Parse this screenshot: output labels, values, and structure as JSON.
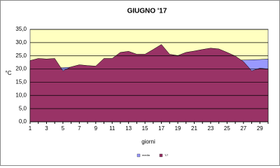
{
  "chart_data": {
    "type": "area",
    "title": "GIUGNO '17",
    "x_label": "giorni",
    "y_label": "°C",
    "categories": [
      "1",
      null,
      "3",
      null,
      "5",
      null,
      "7",
      null,
      "9",
      null,
      "11",
      null,
      "13",
      null,
      "15",
      null,
      "17",
      null,
      "19",
      null,
      "21",
      null,
      "23",
      null,
      "25",
      null,
      "27",
      null,
      "29",
      null
    ],
    "series": [
      {
        "name": "media",
        "color": "#9999ff",
        "values": [
          20.0,
          20.1,
          20.3,
          20.4,
          20.5,
          20.7,
          20.8,
          20.9,
          21.0,
          21.2,
          21.3,
          21.4,
          21.6,
          21.7,
          21.8,
          22.0,
          22.1,
          22.2,
          22.3,
          22.5,
          22.6,
          22.7,
          22.9,
          23.0,
          23.1,
          23.3,
          23.4,
          23.5,
          23.6,
          23.8
        ]
      },
      {
        "name": "'17",
        "color": "#993366",
        "values": [
          23.2,
          24.0,
          23.8,
          24.0,
          19.3,
          20.8,
          21.6,
          21.3,
          21.1,
          24.0,
          24.0,
          26.3,
          26.7,
          25.6,
          25.6,
          27.4,
          29.3,
          25.6,
          25.1,
          26.3,
          26.8,
          27.4,
          27.9,
          27.6,
          26.3,
          24.9,
          22.8,
          19.3,
          20.3,
          20.0
        ]
      }
    ],
    "ylim": [
      0,
      35
    ],
    "yticks": [
      {
        "value": 0,
        "label": "0,0"
      },
      {
        "value": 5,
        "label": "5,0"
      },
      {
        "value": 10,
        "label": "10,0"
      },
      {
        "value": 15,
        "label": "15,0"
      },
      {
        "value": 20,
        "label": "20,0"
      },
      {
        "value": 25,
        "label": "25,0"
      },
      {
        "value": 30,
        "label": "30,0"
      },
      {
        "value": 35,
        "label": "35,0"
      }
    ],
    "grid": true,
    "legend": "bottom",
    "plot_background": "#ffffc0"
  }
}
